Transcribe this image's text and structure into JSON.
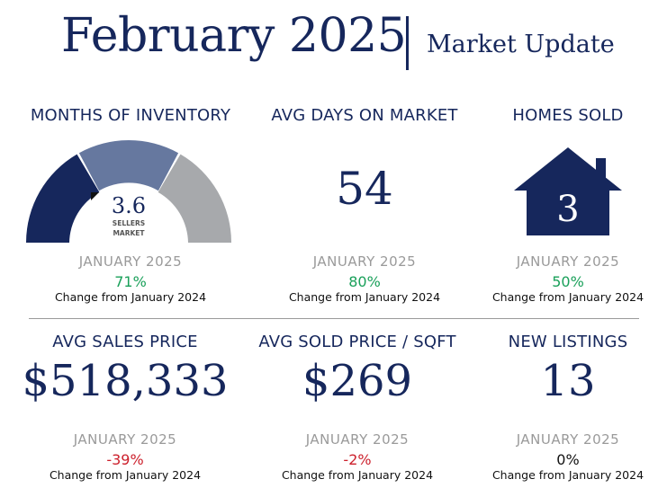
{
  "header": {
    "title": "February 2025",
    "subtitle": "Market Update"
  },
  "colors": {
    "navy": "#16275c",
    "slate_blue": "#66789f",
    "gray": "#a7a9ac",
    "positive": "#1aa05a",
    "negative": "#cc1f2b",
    "neutral": "#111111"
  },
  "metrics": [
    {
      "heading": "MONTHS OF INVENTORY",
      "value": "3.6",
      "gauge_label_1": "SELLERS",
      "gauge_label_2": "MARKET",
      "period": "JANUARY 2025",
      "change": "71%",
      "change_label": "Change from January 2024"
    },
    {
      "heading": "AVG DAYS ON MARKET",
      "value": "54",
      "period": "JANUARY 2025",
      "change": "80%",
      "change_label": "Change from January 2024"
    },
    {
      "heading": "HOMES SOLD",
      "value": "3",
      "icon": "house-icon",
      "period": "JANUARY 2025",
      "change": "50%",
      "change_label": "Change from January 2024"
    },
    {
      "heading": "AVG SALES PRICE",
      "value": "$518,333",
      "period": "JANUARY 2025",
      "change": "-39%",
      "change_label": "Change from January 2024"
    },
    {
      "heading": "AVG SOLD PRICE / SQFT",
      "value": "$269",
      "period": "JANUARY 2025",
      "change": "-2%",
      "change_label": "Change from January 2024"
    },
    {
      "heading": "NEW LISTINGS",
      "value": "13",
      "period": "JANUARY 2025",
      "change": "0%",
      "change_label": "Change from January 2024"
    }
  ]
}
